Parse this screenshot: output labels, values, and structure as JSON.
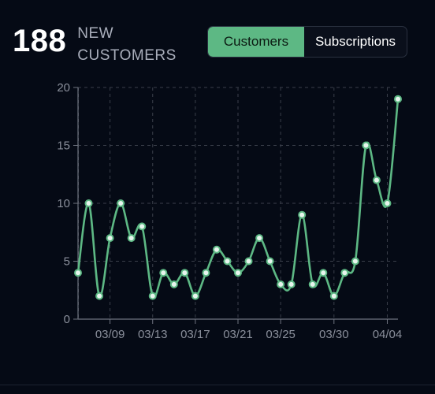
{
  "header": {
    "stat_value": "188",
    "stat_label_line1": "NEW",
    "stat_label_line2": "CUSTOMERS"
  },
  "toggle": {
    "options": [
      "Customers",
      "Subscriptions"
    ],
    "selected": "Customers"
  },
  "colors": {
    "accent": "#5db884",
    "background": "#050a15",
    "grid": "#3a3f4a"
  },
  "chart_data": {
    "type": "line",
    "title": "",
    "xlabel": "",
    "ylabel": "",
    "ylim": [
      0,
      20
    ],
    "yticks": [
      0,
      5,
      10,
      15,
      20
    ],
    "grid": true,
    "x": [
      "03/06",
      "03/07",
      "03/08",
      "03/09",
      "03/10",
      "03/11",
      "03/12",
      "03/13",
      "03/14",
      "03/15",
      "03/16",
      "03/17",
      "03/18",
      "03/19",
      "03/20",
      "03/21",
      "03/22",
      "03/23",
      "03/24",
      "03/25",
      "03/26",
      "03/27",
      "03/28",
      "03/29",
      "03/30",
      "03/31",
      "04/01",
      "04/02",
      "04/03",
      "04/04",
      "04/05"
    ],
    "xtick_labels": [
      "03/09",
      "03/13",
      "03/17",
      "03/21",
      "03/25",
      "03/30",
      "04/04"
    ],
    "series": [
      {
        "values": [
          4,
          10,
          2,
          7,
          10,
          7,
          8,
          2,
          4,
          3,
          4,
          2,
          4,
          6,
          5,
          4,
          5,
          7,
          5,
          3,
          3,
          9,
          3,
          4,
          2,
          4,
          5,
          15,
          12,
          10,
          19
        ]
      }
    ]
  }
}
